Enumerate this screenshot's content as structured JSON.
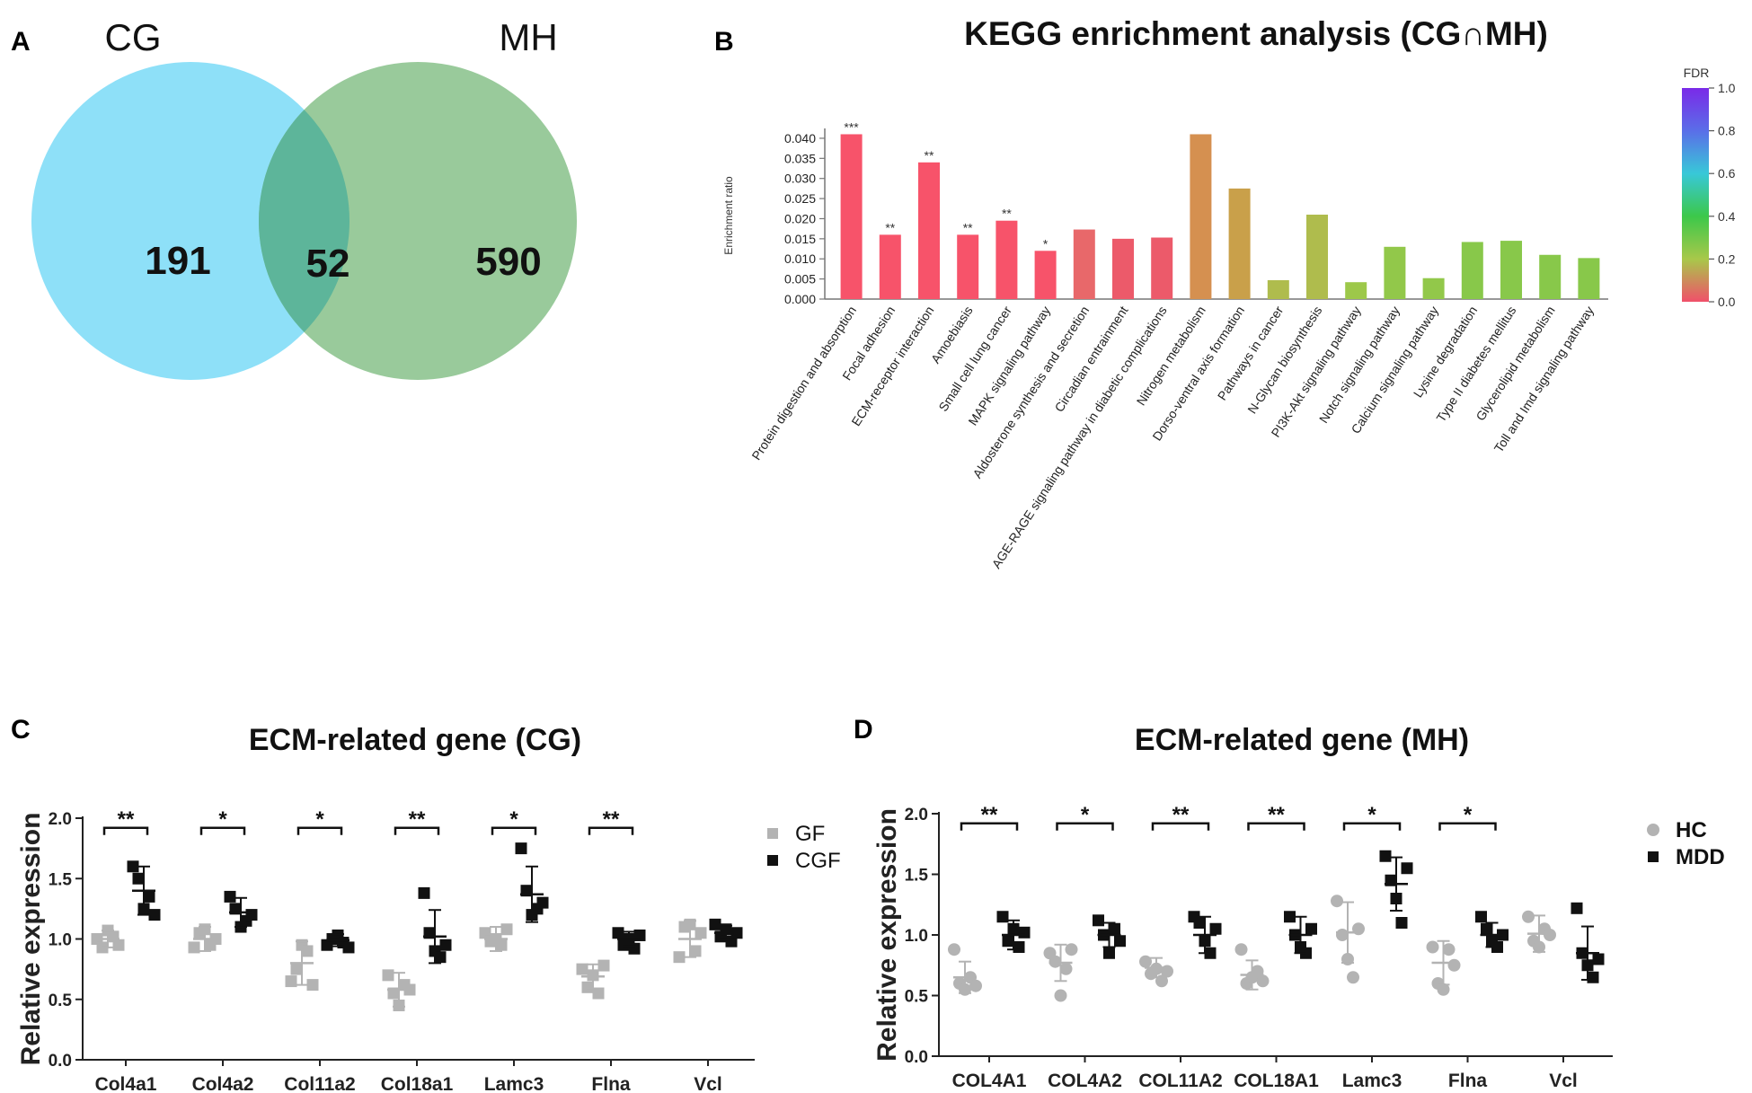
{
  "panels": {
    "a": "A",
    "b": "B",
    "c": "C",
    "d": "D"
  },
  "venn": {
    "set1": {
      "label": "CG",
      "count": "191",
      "color": "#8ee0f8"
    },
    "intersection": {
      "count": "52",
      "color": "#5db59a"
    },
    "set2": {
      "label": "MH",
      "count": "590",
      "color": "#94c796"
    }
  },
  "chart_data": [
    {
      "type": "bar",
      "title": "KEGG enrichment analysis (CG∩MH)",
      "ylabel": "Enrichment ratio",
      "ylim": [
        0,
        0.042
      ],
      "yticks": [
        "0.000",
        "0.005",
        "0.010",
        "0.015",
        "0.020",
        "0.025",
        "0.030",
        "0.035",
        "0.040"
      ],
      "categories": [
        "Protein digestion and absorption",
        "Focal adhesion",
        "ECM-receptor interaction",
        "Amoebiasis",
        "Small cell lung cancer",
        "MAPK signaling pathway",
        "Aldosterone synthesis and secretion",
        "Circadian entrainment",
        "AGE-RAGE signaling pathway in diabetic complications",
        "Nitrogen metabolism",
        "Dorso-ventral axis formation",
        "Pathways in cancer",
        "N-Glycan biosynthesis",
        "PI3K-Akt signaling pathway",
        "Notch signaling pathway",
        "Calcium signaling pathway",
        "Lysine degradation",
        "Type II diabetes mellitus",
        "Glycerolipid metabolism",
        "Toll and Imd signaling pathway"
      ],
      "values": [
        0.041,
        0.016,
        0.034,
        0.016,
        0.0195,
        0.012,
        0.0173,
        0.015,
        0.0153,
        0.041,
        0.0275,
        0.0047,
        0.021,
        0.0042,
        0.013,
        0.0052,
        0.0142,
        0.0145,
        0.011,
        0.0102
      ],
      "fdr": [
        0.0,
        0.0,
        0.0,
        0.0,
        0.0,
        0.0,
        0.02,
        0.02,
        0.02,
        0.12,
        0.16,
        0.18,
        0.18,
        0.22,
        0.24,
        0.24,
        0.26,
        0.26,
        0.26,
        0.26
      ],
      "significance": [
        "***",
        "**",
        "**",
        "**",
        "**",
        "*",
        "",
        "",
        "",
        "",
        "",
        "",
        "",
        "",
        "",
        "",
        "",
        "",
        "",
        ""
      ],
      "colorbar": {
        "label": "FDR",
        "ticks": [
          "0.0",
          "0.2",
          "0.4",
          "0.6",
          "0.8",
          "1.0"
        ]
      }
    },
    {
      "type": "scatter",
      "title": "ECM-related gene (CG)",
      "ylabel": "Relative expression",
      "ylim": [
        0,
        2.0
      ],
      "yticks": [
        "0.0",
        "0.5",
        "1.0",
        "1.5",
        "2.0"
      ],
      "categories": [
        "Col4a1",
        "Col4a2",
        "Col11a2",
        "Col18a1",
        "Lamc3",
        "Flna",
        "Vcl"
      ],
      "significance": [
        "**",
        "*",
        "*",
        "**",
        "*",
        "**",
        ""
      ],
      "series": [
        {
          "name": "GF",
          "color": "#b3b3b3",
          "mean": [
            1.0,
            1.0,
            0.8,
            0.58,
            1.0,
            0.69,
            1.0
          ],
          "sd": [
            0.07,
            0.1,
            0.18,
            0.14,
            0.1,
            0.1,
            0.15
          ],
          "points": [
            [
              1.0,
              0.93,
              1.07,
              1.02,
              0.95
            ],
            [
              0.93,
              1.05,
              1.08,
              0.95,
              1.0
            ],
            [
              0.65,
              0.75,
              0.95,
              0.9,
              0.62
            ],
            [
              0.7,
              0.55,
              0.45,
              0.62,
              0.58
            ],
            [
              1.05,
              0.98,
              1.0,
              0.95,
              1.08
            ],
            [
              0.75,
              0.6,
              0.7,
              0.55,
              0.78
            ],
            [
              0.85,
              1.1,
              1.12,
              0.9,
              1.05
            ]
          ]
        },
        {
          "name": "CGF",
          "color": "#111111",
          "mean": [
            1.4,
            1.22,
            0.99,
            1.02,
            1.37,
            1.0,
            1.05
          ],
          "sd": [
            0.2,
            0.12,
            0.05,
            0.22,
            0.23,
            0.06,
            0.06
          ],
          "points": [
            [
              1.6,
              1.5,
              1.25,
              1.35,
              1.2
            ],
            [
              1.35,
              1.25,
              1.1,
              1.15,
              1.2
            ],
            [
              0.95,
              1.0,
              1.03,
              0.97,
              0.93
            ],
            [
              1.38,
              1.05,
              0.9,
              0.85,
              0.95
            ],
            [
              1.75,
              1.4,
              1.2,
              1.25,
              1.3
            ],
            [
              1.05,
              0.95,
              1.0,
              0.92,
              1.03
            ],
            [
              1.12,
              1.02,
              1.08,
              0.98,
              1.05
            ]
          ]
        }
      ]
    },
    {
      "type": "scatter",
      "title": "ECM-related gene (MH)",
      "ylabel": "Relative expression",
      "ylim": [
        0,
        2.0
      ],
      "yticks": [
        "0.0",
        "0.5",
        "1.0",
        "1.5",
        "2.0"
      ],
      "categories": [
        "COL4A1",
        "COL4A2",
        "COL11A2",
        "COL18A1",
        "Lamc3",
        "Flna",
        "Vcl"
      ],
      "significance": [
        "**",
        "*",
        "**",
        "**",
        "*",
        "*",
        ""
      ],
      "series": [
        {
          "name": "HC",
          "color": "#b3b3b3",
          "mean": [
            0.65,
            0.77,
            0.73,
            0.67,
            1.02,
            0.77,
            1.01
          ],
          "sd": [
            0.13,
            0.15,
            0.08,
            0.12,
            0.25,
            0.18,
            0.15
          ],
          "points": [
            [
              0.88,
              0.6,
              0.55,
              0.65,
              0.58
            ],
            [
              0.85,
              0.78,
              0.5,
              0.72,
              0.88
            ],
            [
              0.78,
              0.68,
              0.72,
              0.62,
              0.7
            ],
            [
              0.88,
              0.6,
              0.65,
              0.7,
              0.62
            ],
            [
              1.28,
              1.0,
              0.8,
              0.65,
              1.05
            ],
            [
              0.9,
              0.6,
              0.55,
              0.88,
              0.75
            ],
            [
              1.15,
              0.95,
              0.9,
              1.05,
              1.0
            ]
          ]
        },
        {
          "name": "MDD",
          "color": "#111111",
          "mean": [
            1.0,
            1.0,
            1.0,
            1.0,
            1.42,
            1.0,
            0.85
          ],
          "sd": [
            0.12,
            0.1,
            0.15,
            0.15,
            0.22,
            0.1,
            0.22
          ],
          "points": [
            [
              1.15,
              0.95,
              1.05,
              0.9,
              1.02
            ],
            [
              1.12,
              1.0,
              0.85,
              1.05,
              0.95
            ],
            [
              1.15,
              1.1,
              0.95,
              0.85,
              1.05
            ],
            [
              1.15,
              1.0,
              0.9,
              0.85,
              1.05
            ],
            [
              1.65,
              1.45,
              1.3,
              1.1,
              1.55
            ],
            [
              1.15,
              1.05,
              0.95,
              0.9,
              1.0
            ],
            [
              1.22,
              0.85,
              0.75,
              0.65,
              0.8
            ]
          ]
        }
      ]
    }
  ]
}
